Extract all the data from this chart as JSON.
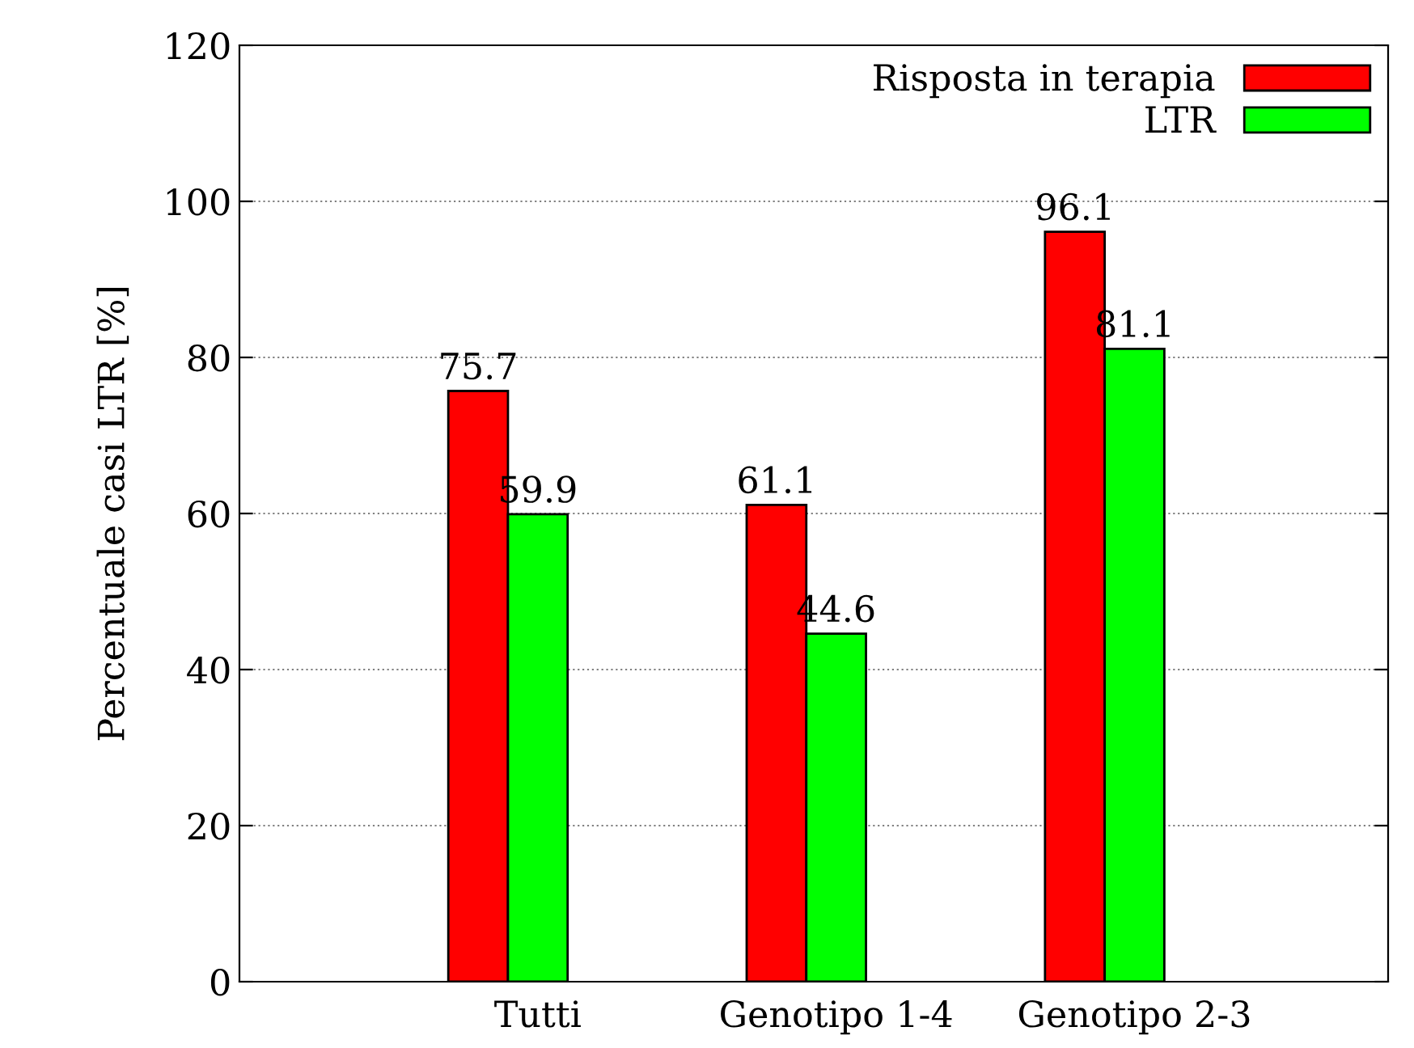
{
  "chart_data": {
    "type": "bar",
    "ylabel": "Percentuale casi LTR [%]",
    "categories": [
      "Tutti",
      "Genotipo 1-4",
      "Genotipo 2-3"
    ],
    "series": [
      {
        "name": "Risposta in terapia",
        "color": "#ff0000",
        "values": [
          75.7,
          61.1,
          96.1
        ]
      },
      {
        "name": "LTR",
        "color": "#00ff00",
        "values": [
          59.9,
          44.6,
          81.1
        ]
      }
    ],
    "ylim": [
      0,
      120
    ],
    "yticks": [
      0,
      20,
      40,
      60,
      80,
      100,
      120
    ],
    "grid": "y",
    "legend": "top right",
    "data_labels": true
  }
}
